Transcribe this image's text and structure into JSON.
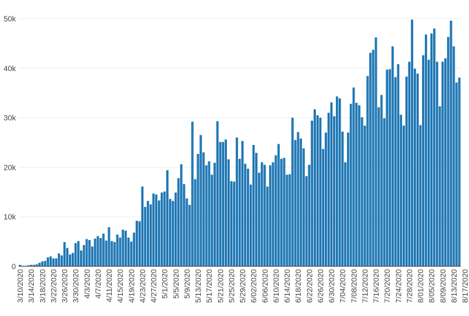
{
  "chart_data": {
    "type": "bar",
    "title": "",
    "xlabel": "",
    "ylabel": "",
    "ylim": [
      0,
      50000
    ],
    "grid": true,
    "bar_color": "#1f77b4",
    "gridline_color": "#eeeeee",
    "axis_color": "#444444",
    "x_start_date": "2020-03-10",
    "x_tick_labels": [
      "3/10/2020",
      "3/14/2020",
      "3/18/2020",
      "3/22/2020",
      "3/26/2020",
      "3/30/2020",
      "4/3/2020",
      "4/7/2020",
      "4/11/2020",
      "4/15/2020",
      "4/19/2020",
      "4/23/2020",
      "4/27/2020",
      "5/1/2020",
      "5/5/2020",
      "5/9/2020",
      "5/13/2020",
      "5/17/2020",
      "5/21/2020",
      "5/25/2020",
      "5/29/2020",
      "6/02/2020",
      "6/06/2020",
      "6/10/2020",
      "6/14/2020",
      "6/18/2020",
      "6/22/2020",
      "6/26/2020",
      "6/30/2020",
      "7/04/2020",
      "7/08/2020",
      "7/12/2020",
      "7/16/2020",
      "7/20/2020",
      "7/24/2020",
      "7/28/2020",
      "8/01/2020",
      "8/05/2020",
      "8/09/2020",
      "8/13/2020",
      "8/17/2020"
    ],
    "y_tick_labels": [
      "0",
      "10k",
      "20k",
      "30k",
      "40k",
      "50k"
    ],
    "y_tick_values": [
      0,
      10000,
      20000,
      30000,
      40000,
      50000
    ],
    "values": [
      300,
      100,
      100,
      200,
      300,
      300,
      400,
      700,
      1000,
      1100,
      1800,
      2000,
      1600,
      1600,
      2600,
      2200,
      4900,
      3700,
      2400,
      2700,
      4700,
      5100,
      3200,
      4300,
      5500,
      5300,
      4000,
      5600,
      6100,
      5700,
      6600,
      5200,
      7900,
      5100,
      4900,
      6400,
      5800,
      7400,
      7200,
      5800,
      5000,
      6800,
      9200,
      9100,
      16100,
      12000,
      13200,
      12500,
      14700,
      14500,
      13300,
      14900,
      15100,
      19400,
      13600,
      13200,
      14900,
      17800,
      20600,
      16600,
      13700,
      12400,
      29200,
      17600,
      22700,
      26500,
      23000,
      20400,
      21200,
      18500,
      20900,
      29300,
      25100,
      25100,
      25600,
      21600,
      17200,
      17100,
      26000,
      21700,
      25300,
      20700,
      19700,
      16500,
      24500,
      22900,
      18900,
      21000,
      20500,
      16100,
      20400,
      21000,
      22400,
      24700,
      21700,
      21900,
      18500,
      18600,
      30000,
      25500,
      27100,
      25800,
      23800,
      18200,
      20500,
      29400,
      31700,
      30500,
      30000,
      23700,
      27000,
      31000,
      33100,
      30300,
      34300,
      33900,
      27200,
      21000,
      27000,
      32800,
      36100,
      33000,
      32500,
      30100,
      28400,
      38400,
      43100,
      43700,
      46200,
      32100,
      34600,
      29900,
      39700,
      39800,
      44400,
      38200,
      40800,
      30600,
      28400,
      38300,
      41300,
      49800,
      39900,
      38900,
      28500,
      42600,
      46800,
      41700,
      47000,
      48000,
      41300,
      32300,
      41300,
      42000,
      46300,
      49600,
      44400,
      37100,
      38100
    ]
  }
}
